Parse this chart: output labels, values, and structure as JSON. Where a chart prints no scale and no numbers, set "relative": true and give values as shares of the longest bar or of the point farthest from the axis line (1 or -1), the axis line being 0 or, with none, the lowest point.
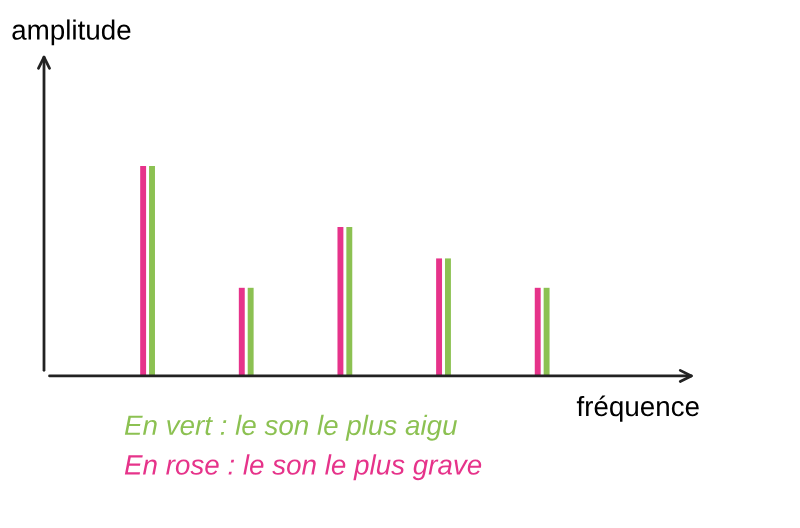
{
  "chart_data": {
    "type": "bar",
    "relative": true,
    "xlabel": "fréquence",
    "ylabel": "amplitude",
    "categories": [
      null,
      null,
      null,
      null,
      null
    ],
    "series": [
      {
        "color": "#e6338a",
        "values": [
          1,
          0.42,
          0.71,
          0.56,
          0.42
        ]
      },
      {
        "color": "#8cc152",
        "values": [
          1,
          0.42,
          0.71,
          0.56,
          0.42
        ]
      }
    ],
    "annotations": [
      "En vert : le son le plus aigu",
      "En rose : le son le plus grave"
    ],
    "grid": false
  }
}
